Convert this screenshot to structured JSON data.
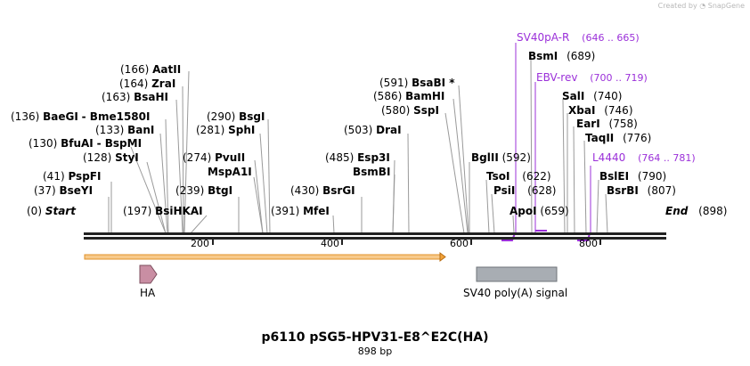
{
  "credit": {
    "prefix": "Created by",
    "brand": "SnapGene"
  },
  "title": "p6110 pSG5-HPV31-E8^E2C(HA)",
  "length_label": "898 bp",
  "ruler_ticks": [
    "200",
    "400",
    "600",
    "800"
  ],
  "sites": [
    {
      "name": "Start",
      "pos": "(0)"
    },
    {
      "name": "BseYI",
      "pos": "(37)"
    },
    {
      "name": "PspFI",
      "pos": "(41)"
    },
    {
      "name": "StyI",
      "pos": "(128)"
    },
    {
      "name": "BfuAI",
      "pos": "(130)"
    },
    {
      "name": "- BspMI",
      "pos": ""
    },
    {
      "name": "BanI",
      "pos": "(133)"
    },
    {
      "name": "BaeGI",
      "pos": "(136)"
    },
    {
      "name": "- Bme1580I",
      "pos": ""
    },
    {
      "name": "BsaHI",
      "pos": "(163)"
    },
    {
      "name": "ZraI",
      "pos": "(164)"
    },
    {
      "name": "AatII",
      "pos": "(166)"
    },
    {
      "name": "BsiHKAI",
      "pos": "(197)"
    },
    {
      "name": "BtgI",
      "pos": "(239)"
    },
    {
      "name": "MspA1I",
      "pos": ""
    },
    {
      "name": "PvuII",
      "pos": "(274)"
    },
    {
      "name": "SphI",
      "pos": "(281)"
    },
    {
      "name": "BsgI",
      "pos": "(290)"
    },
    {
      "name": "MfeI",
      "pos": "(391)"
    },
    {
      "name": "BsrGI",
      "pos": "(430)"
    },
    {
      "name": "BsmBI",
      "pos": ""
    },
    {
      "name": "Esp3I",
      "pos": "(485)"
    },
    {
      "name": "DraI",
      "pos": "(503)"
    },
    {
      "name": "SspI",
      "pos": "(580)"
    },
    {
      "name": "BamHI",
      "pos": "(586)"
    },
    {
      "name": "BsaBI *",
      "pos": "(591)"
    },
    {
      "name": "BglII",
      "pos": "(592)"
    },
    {
      "name": "TsoI",
      "pos": "(622)"
    },
    {
      "name": "PsiI",
      "pos": "(628)"
    },
    {
      "name": "ApoI",
      "pos": "(659)"
    },
    {
      "name": "BsmI",
      "pos": "(689)"
    },
    {
      "name": "SalI",
      "pos": "(740)"
    },
    {
      "name": "XbaI",
      "pos": "(746)"
    },
    {
      "name": "EarI",
      "pos": "(758)"
    },
    {
      "name": "TaqII",
      "pos": "(776)"
    },
    {
      "name": "BslEI",
      "pos": "(790)"
    },
    {
      "name": "BsrBI",
      "pos": "(807)"
    },
    {
      "name": "End",
      "pos": "(898)"
    }
  ],
  "primers": [
    {
      "name": "SV40pA-R",
      "range": "(646 .. 665)"
    },
    {
      "name": "EBV-rev",
      "range": "(700 .. 719)"
    },
    {
      "name": "L4440",
      "range": "(764 .. 781)"
    }
  ],
  "features": [
    {
      "name": "HA"
    },
    {
      "name": "SV40 poly(A) signal"
    }
  ],
  "colors": {
    "primer": "#9b30d9",
    "orf": "#f2a33a",
    "ha": "#c98ea3",
    "sv40": "#a8adb3"
  }
}
